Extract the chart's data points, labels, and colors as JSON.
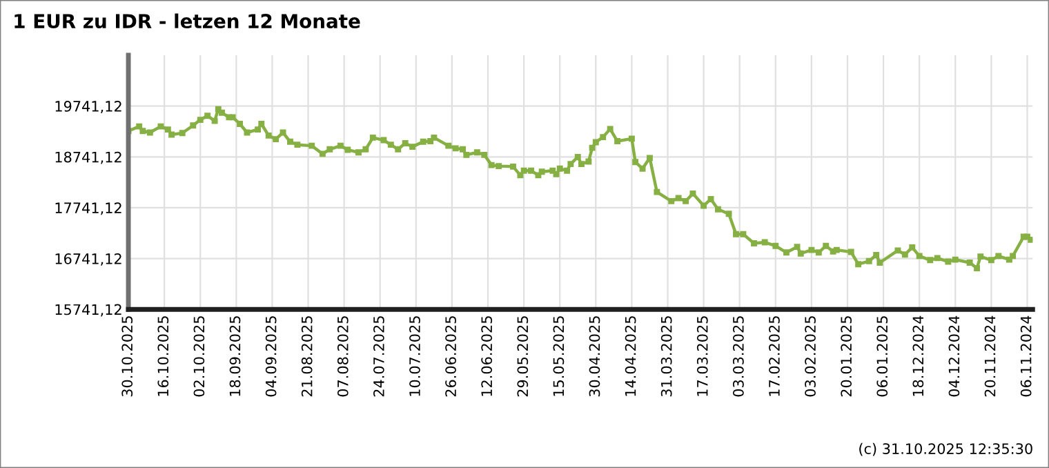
{
  "chart_data": {
    "type": "line",
    "title": "1 EUR zu IDR - letzen 12 Monate",
    "annotations": [
      "(c) 31.10.2025 12:35:30"
    ],
    "categories": [
      "30.10.2025",
      null,
      null,
      null,
      null,
      null,
      null,
      null,
      null,
      null,
      "16.10.2025",
      null,
      null,
      null,
      null,
      null,
      null,
      null,
      null,
      null,
      "02.10.2025",
      null,
      null,
      null,
      null,
      null,
      null,
      null,
      null,
      null,
      "18.09.2025",
      null,
      null,
      null,
      null,
      null,
      null,
      null,
      null,
      null,
      "04.09.2025",
      null,
      null,
      null,
      null,
      null,
      null,
      null,
      null,
      null,
      "21.08.2025",
      null,
      null,
      null,
      null,
      null,
      null,
      null,
      null,
      null,
      "07.08.2025",
      null,
      null,
      null,
      null,
      null,
      null,
      null,
      null,
      null,
      "24.07.2025",
      null,
      null,
      null,
      null,
      null,
      null,
      null,
      null,
      null,
      "10.07.2025",
      null,
      null,
      null,
      null,
      null,
      null,
      null,
      null,
      null,
      "26.06.2025",
      null,
      null,
      null,
      null,
      null,
      null,
      null,
      null,
      null,
      "12.06.2025",
      null,
      null,
      null,
      null,
      null,
      null,
      null,
      null,
      null,
      "29.05.2025",
      null,
      null,
      null,
      null,
      null,
      null,
      null,
      null,
      null,
      "15.05.2025",
      null,
      null,
      null,
      null,
      null,
      null,
      null,
      null,
      null,
      "30.04.2025",
      null,
      null,
      null,
      null,
      null,
      null,
      null,
      null,
      null,
      "14.04.2025",
      null,
      null,
      null,
      null,
      null,
      null,
      null,
      null,
      null,
      "31.03.2025",
      null,
      null,
      null,
      null,
      null,
      null,
      null,
      null,
      null,
      "17.03.2025",
      null,
      null,
      null,
      null,
      null,
      null,
      null,
      null,
      null,
      "03.03.2025",
      null,
      null,
      null,
      null,
      null,
      null,
      null,
      null,
      null,
      "17.02.2025",
      null,
      null,
      null,
      null,
      null,
      null,
      null,
      null,
      null,
      "03.02.2025",
      null,
      null,
      null,
      null,
      null,
      null,
      null,
      null,
      null,
      "20.01.2025",
      null,
      null,
      null,
      null,
      null,
      null,
      null,
      null,
      null,
      "06.01.2025",
      null,
      null,
      null,
      null,
      null,
      null,
      null,
      null,
      null,
      "18.12.2024",
      null,
      null,
      null,
      null,
      null,
      null,
      null,
      null,
      null,
      "04.12.2024",
      null,
      null,
      null,
      null,
      null,
      null,
      null,
      null,
      null,
      "20.11.2024",
      null,
      null,
      null,
      null,
      null,
      null,
      null,
      null,
      null,
      "06.11.2024",
      null
    ],
    "series": [
      {
        "color": "#86b043",
        "values": [
          19250,
          null,
          null,
          19340,
          19250,
          null,
          19220,
          null,
          null,
          19340,
          null,
          19280,
          19180,
          null,
          null,
          19210,
          null,
          null,
          19360,
          null,
          19470,
          null,
          19550,
          null,
          19450,
          19680,
          19610,
          null,
          19520,
          19520,
          null,
          19390,
          null,
          19220,
          null,
          null,
          19280,
          19390,
          null,
          19160,
          null,
          19090,
          null,
          19220,
          null,
          19040,
          null,
          18980,
          null,
          null,
          null,
          18960,
          null,
          null,
          18800,
          null,
          18890,
          null,
          null,
          18960,
          null,
          18880,
          null,
          null,
          18830,
          null,
          18890,
          null,
          19120,
          null,
          null,
          19070,
          null,
          18980,
          null,
          18890,
          null,
          19010,
          null,
          18940,
          null,
          null,
          19040,
          null,
          19050,
          19120,
          null,
          null,
          null,
          18960,
          null,
          18910,
          null,
          18890,
          18780,
          null,
          null,
          18830,
          null,
          18780,
          null,
          18580,
          null,
          18560,
          null,
          null,
          null,
          18550,
          null,
          18380,
          18470,
          null,
          18470,
          null,
          18380,
          18450,
          null,
          null,
          18470,
          18400,
          18510,
          null,
          18470,
          18600,
          null,
          18740,
          18600,
          null,
          18650,
          18920,
          19030,
          null,
          19130,
          null,
          19290,
          null,
          19050,
          null,
          null,
          null,
          19100,
          18640,
          null,
          18510,
          null,
          18720,
          null,
          18050,
          null,
          null,
          null,
          17870,
          null,
          17930,
          null,
          17870,
          null,
          18020,
          null,
          null,
          17780,
          null,
          17910,
          null,
          17710,
          null,
          null,
          17620,
          null,
          17220,
          null,
          17220,
          null,
          null,
          17040,
          null,
          null,
          17060,
          null,
          null,
          16990,
          null,
          null,
          16860,
          null,
          null,
          16970,
          16840,
          null,
          null,
          16910,
          null,
          16860,
          null,
          16990,
          null,
          16880,
          16910,
          null,
          null,
          null,
          16870,
          null,
          16630,
          null,
          null,
          16690,
          null,
          16810,
          16660,
          null,
          null,
          null,
          null,
          16900,
          null,
          16820,
          null,
          16960,
          null,
          16790,
          null,
          null,
          16710,
          null,
          16750,
          null,
          null,
          16680,
          null,
          16720,
          null,
          null,
          null,
          16660,
          null,
          16550,
          16780,
          null,
          null,
          16710,
          null,
          16790,
          null,
          null,
          16720,
          16790,
          null,
          null,
          17170,
          17170,
          17110
        ]
      }
    ],
    "ylim": [
      15741.12,
      20741.12
    ],
    "yticks": [
      {
        "value": 15741.12,
        "label": "15741,12"
      },
      {
        "value": 16741.12,
        "label": "16741,12"
      },
      {
        "value": 17741.12,
        "label": "17741,12"
      },
      {
        "value": 18741.12,
        "label": "18741,12"
      },
      {
        "value": 19741.12,
        "label": "19741,12"
      }
    ],
    "grid": true,
    "marker": "square",
    "line_style": "solid"
  }
}
